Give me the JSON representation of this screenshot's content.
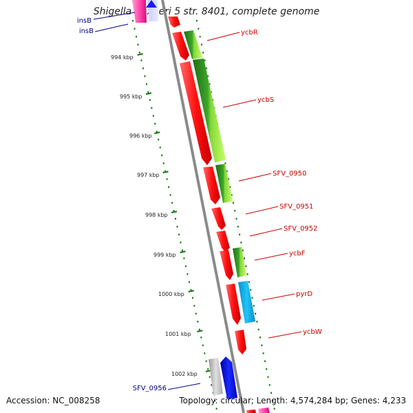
{
  "title": "Shigella flexneri 5 str. 8401, complete genome",
  "accession": "Accession: NC_008258",
  "topology": "Topology: circular; Length: 4,574,284 bp; Genes: 4,233",
  "colors": {
    "red": "#ff1a1a",
    "green_dark": "#2e8b1f",
    "green_light": "#a8f04a",
    "cyan": "#1ab8ef",
    "blue": "#0a14f0",
    "pink": "#ff4fb0",
    "grey": "#bdbdbd",
    "backbone": "#8a8a8a",
    "tick": "#1a7a1a",
    "label_red": "#cc0000",
    "label_blue": "#00008b"
  },
  "ticks": [
    "994 kbp",
    "995 kbp",
    "996 kbp",
    "997 kbp",
    "998 kbp",
    "999 kbp",
    "1000 kbp",
    "1001 kbp",
    "1002 kbp"
  ],
  "gene_labels_right": [
    "ycbR",
    "ycbS",
    "SFV_0950",
    "SFV_0951",
    "SFV_0952",
    "ycbF",
    "pyrD",
    "ycbW"
  ],
  "gene_labels_left": [
    "insB",
    "insB",
    "SFV_0956"
  ]
}
